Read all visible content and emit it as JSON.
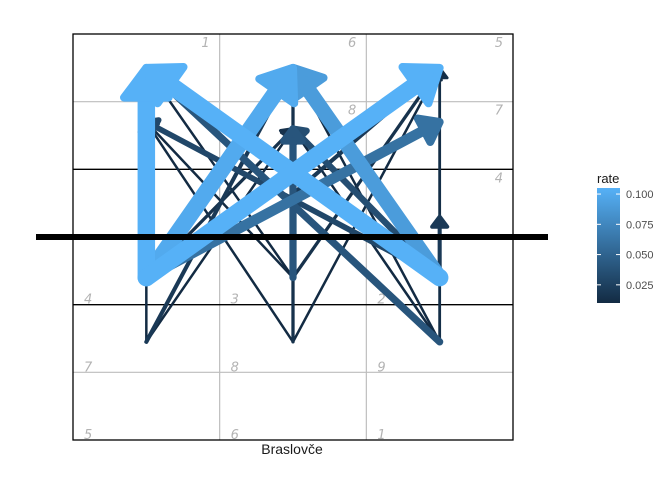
{
  "chart_data": {
    "type": "network",
    "xlabel": "Braslovče",
    "legend": {
      "title": "rate",
      "ticks": [
        "0.100",
        "0.075",
        "0.050",
        "0.025"
      ],
      "position": "right"
    },
    "colors": {
      "low": "#132B43",
      "high": "#56B1F7"
    },
    "grid": [
      {
        "label": "1",
        "row": 0,
        "col": 0
      },
      {
        "label": "6",
        "row": 0,
        "col": 1
      },
      {
        "label": "5",
        "row": 0,
        "col": 2
      },
      {
        "label": "",
        "row": 1,
        "col": 0
      },
      {
        "label": "8",
        "row": 1,
        "col": 1
      },
      {
        "label": "7",
        "row": 1,
        "col": 2
      },
      {
        "label": "",
        "row": 2,
        "col": 0
      },
      {
        "label": "",
        "row": 2,
        "col": 1
      },
      {
        "label": "4",
        "row": 2,
        "col": 2
      },
      {
        "label": "4",
        "row": 3,
        "col": 0
      },
      {
        "label": "3",
        "row": 3,
        "col": 1
      },
      {
        "label": "2",
        "row": 3,
        "col": 2
      },
      {
        "label": "7",
        "row": 4,
        "col": 0
      },
      {
        "label": "8",
        "row": 4,
        "col": 1
      },
      {
        "label": "9",
        "row": 4,
        "col": 2
      },
      {
        "label": "5",
        "row": 5,
        "col": 0
      },
      {
        "label": "6",
        "row": 5,
        "col": 1
      },
      {
        "label": "1",
        "row": 5,
        "col": 2
      }
    ],
    "nodes": [
      {
        "id": "top-L",
        "x": 0.5,
        "y": 5.5
      },
      {
        "id": "top-M",
        "x": 1.5,
        "y": 5.5
      },
      {
        "id": "top-R",
        "x": 2.5,
        "y": 5.5
      },
      {
        "id": "mid-L",
        "x": 0.5,
        "y": 4.7
      },
      {
        "id": "mid-M",
        "x": 1.5,
        "y": 4.6
      },
      {
        "id": "mid-R",
        "x": 2.5,
        "y": 4.7
      },
      {
        "id": "lo-L",
        "x": 0.5,
        "y": 2.4
      },
      {
        "id": "lo-M",
        "x": 1.5,
        "y": 2.4
      },
      {
        "id": "lo-R",
        "x": 2.5,
        "y": 2.4
      },
      {
        "id": "bot-L",
        "x": 0.5,
        "y": 1.45
      },
      {
        "id": "bot-M",
        "x": 1.5,
        "y": 1.45
      },
      {
        "id": "bot-R",
        "x": 2.5,
        "y": 1.45
      },
      {
        "id": "c-M",
        "x": 1.4,
        "y": 3.45
      },
      {
        "id": "c-R",
        "x": 2.5,
        "y": 3.3
      }
    ],
    "edges": [
      {
        "from": "lo-L",
        "to": "top-L",
        "rate": 0.105
      },
      {
        "from": "lo-R",
        "to": "top-L",
        "rate": 0.105
      },
      {
        "from": "lo-L",
        "to": "top-R",
        "rate": 0.105
      },
      {
        "from": "lo-L",
        "to": "top-M",
        "rate": 0.1
      },
      {
        "from": "lo-R",
        "to": "top-M",
        "rate": 0.09
      },
      {
        "from": "lo-L",
        "to": "mid-R",
        "rate": 0.06
      },
      {
        "from": "lo-R",
        "to": "mid-L",
        "rate": 0.03
      },
      {
        "from": "lo-R",
        "to": "mid-M",
        "rate": 0.035
      },
      {
        "from": "lo-M",
        "to": "mid-M",
        "rate": 0.04
      },
      {
        "from": "bot-R",
        "to": "top-L",
        "rate": 0.04
      },
      {
        "from": "bot-L",
        "to": "top-M",
        "rate": 0.02
      },
      {
        "from": "bot-M",
        "to": "top-M",
        "rate": 0.015
      },
      {
        "from": "lo-L",
        "to": "mid-M",
        "rate": 0.015
      },
      {
        "from": "lo-R",
        "to": "c-R",
        "rate": 0.02
      },
      {
        "from": "c-M",
        "to": "top-R",
        "rate": 0.02
      },
      {
        "from": "lo-M",
        "to": "top-R",
        "rate": 0.015
      },
      {
        "from": "lo-M",
        "to": "top-L",
        "rate": 0.01
      },
      {
        "from": "bot-L",
        "to": "top-L",
        "rate": 0.01
      },
      {
        "from": "bot-L",
        "to": "mid-M",
        "rate": 0.01
      },
      {
        "from": "bot-M",
        "to": "top-R",
        "rate": 0.01
      },
      {
        "from": "bot-M",
        "to": "mid-L",
        "rate": 0.01
      },
      {
        "from": "bot-R",
        "to": "top-R",
        "rate": 0.012
      },
      {
        "from": "bot-R",
        "to": "top-M",
        "rate": 0.01
      },
      {
        "from": "bot-R",
        "to": "mid-M",
        "rate": 0.01
      },
      {
        "from": "lo-M",
        "to": "mid-L",
        "rate": 0.01
      },
      {
        "from": "lo-L",
        "to": "mid-L",
        "rate": 0.01
      }
    ],
    "hline": {
      "y": 3.0
    },
    "xlim": [
      0,
      3
    ],
    "ylim": [
      0,
      6
    ]
  }
}
